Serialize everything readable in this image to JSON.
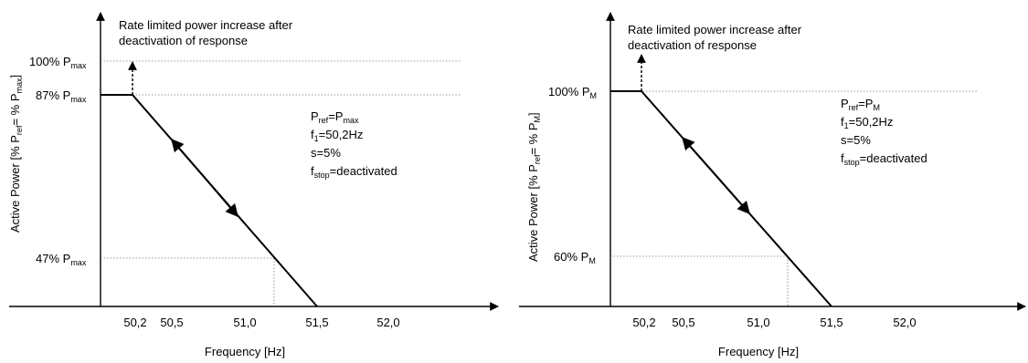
{
  "diagrams": [
    {
      "annotation_line1": "Rate limited power increase after",
      "annotation_line2": "deactivation of response",
      "ylabel": {
        "a": "Active Power [% P",
        "b": "ref",
        "c": "= % P",
        "d": "max",
        "e": "]"
      },
      "xlabel": "Frequency [Hz]",
      "yticks": [
        {
          "main": "100% P",
          "sub": "max"
        },
        {
          "main": "87% P",
          "sub": "max"
        },
        {
          "main": "47% P",
          "sub": "max"
        }
      ],
      "xticks": [
        "50,2",
        "50,5",
        "51,0",
        "51,5",
        "52,0"
      ],
      "params": [
        {
          "pre": "P",
          "sub": "ref",
          "post": "=P",
          "sub2": "max"
        },
        {
          "pre": "f",
          "sub": "1",
          "post": "=50,2Hz",
          "sub2": ""
        },
        {
          "pre": "s=5%",
          "sub": "",
          "post": "",
          "sub2": ""
        },
        {
          "pre": "f",
          "sub": "stop",
          "post": "=deactivated",
          "sub2": ""
        }
      ]
    },
    {
      "annotation_line1": "Rate limited power increase after",
      "annotation_line2": "deactivation of response",
      "ylabel": {
        "a": "Active Power [% P",
        "b": "ref",
        "c": "= % P",
        "d": "M",
        "e": "]"
      },
      "xlabel": "Frequency [Hz]",
      "yticks": [
        {
          "main": "100% P",
          "sub": "M"
        },
        {
          "main": "60% P",
          "sub": "M"
        }
      ],
      "xticks": [
        "50,2",
        "50,5",
        "51,0",
        "51,5",
        "52,0"
      ],
      "params": [
        {
          "pre": "P",
          "sub": "ref",
          "post": "=P",
          "sub2": "M"
        },
        {
          "pre": "f",
          "sub": "1",
          "post": "=50,2Hz",
          "sub2": ""
        },
        {
          "pre": "s=5%",
          "sub": "",
          "post": "",
          "sub2": ""
        },
        {
          "pre": "f",
          "sub": "stop",
          "post": "=deactivated",
          "sub2": ""
        }
      ]
    }
  ]
}
